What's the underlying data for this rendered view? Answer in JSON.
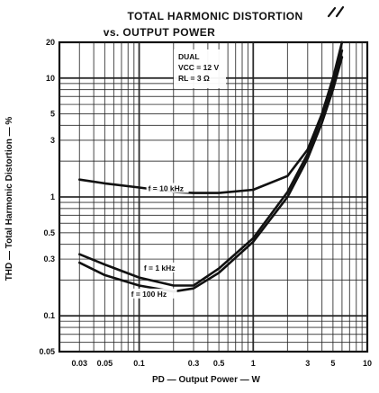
{
  "chart_data": {
    "type": "line",
    "title": "TOTAL HARMONIC DISTORTION",
    "subtitle": "vs. OUTPUT POWER",
    "xlabel": "PD — Output Power — W",
    "ylabel": "THD — Total Harmonic Distortion — %",
    "x_scale": "log",
    "y_scale": "log",
    "xlim": [
      0.02,
      10
    ],
    "ylim": [
      0.05,
      20
    ],
    "grid": true,
    "x_ticks": [
      "0.03",
      "0.05",
      "0.1",
      "0.3",
      "0.5",
      "1",
      "3",
      "5",
      "10"
    ],
    "y_ticks": [
      "0.05",
      "0.1",
      "0.3",
      "0.5",
      "1",
      "3",
      "5",
      "10",
      "20"
    ],
    "conditions": [
      "DUAL",
      "VCC = 12 V",
      "RL = 3 Ω"
    ],
    "series": [
      {
        "name": "f = 10 kHz",
        "x": [
          0.03,
          0.05,
          0.1,
          0.2,
          0.3,
          0.5,
          1,
          2,
          3,
          4,
          5,
          6
        ],
        "y": [
          1.4,
          1.3,
          1.2,
          1.1,
          1.08,
          1.08,
          1.15,
          1.5,
          2.5,
          5,
          10,
          20
        ]
      },
      {
        "name": "f = 1 kHz",
        "x": [
          0.03,
          0.05,
          0.1,
          0.2,
          0.3,
          0.5,
          1,
          2,
          3,
          4,
          5,
          6
        ],
        "y": [
          0.33,
          0.27,
          0.21,
          0.18,
          0.18,
          0.25,
          0.45,
          1.1,
          2.3,
          4.8,
          9,
          17
        ]
      },
      {
        "name": "f = 100 Hz",
        "x": [
          0.03,
          0.05,
          0.1,
          0.2,
          0.3,
          0.5,
          1,
          2,
          3,
          4,
          5,
          6
        ],
        "y": [
          0.28,
          0.22,
          0.18,
          0.16,
          0.17,
          0.23,
          0.42,
          1.0,
          2.1,
          4.2,
          8,
          15
        ]
      }
    ]
  }
}
